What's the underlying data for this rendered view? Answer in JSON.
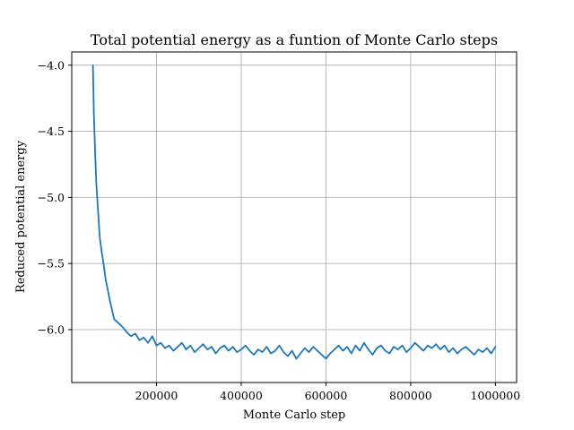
{
  "chart_data": {
    "type": "line",
    "title": "Total potential energy as a funtion of Monte Carlo steps",
    "xlabel": "Monte Carlo step",
    "ylabel": "Reduced potential energy",
    "xlim": [
      0,
      1050000
    ],
    "ylim": [
      -6.4,
      -3.9
    ],
    "xticks": [
      200000,
      400000,
      600000,
      800000,
      1000000
    ],
    "xtick_labels": [
      "200000",
      "400000",
      "600000",
      "800000",
      "1000000"
    ],
    "yticks": [
      -4.0,
      -4.5,
      -5.0,
      -5.5,
      -6.0
    ],
    "ytick_labels": [
      "−4.0",
      "−4.5",
      "−5.0",
      "−5.5",
      "−6.0"
    ],
    "grid": true,
    "series": [
      {
        "color": "#1f77b4",
        "x": [
          50000,
          52000,
          55000,
          58000,
          62000,
          66000,
          70000,
          75000,
          80000,
          85000,
          90000,
          95000,
          100000,
          110000,
          120000,
          130000,
          140000,
          150000,
          160000,
          170000,
          180000,
          190000,
          200000,
          210000,
          220000,
          230000,
          240000,
          250000,
          260000,
          270000,
          280000,
          290000,
          300000,
          310000,
          320000,
          330000,
          340000,
          350000,
          360000,
          370000,
          380000,
          390000,
          400000,
          410000,
          420000,
          430000,
          440000,
          450000,
          460000,
          470000,
          480000,
          490000,
          500000,
          510000,
          520000,
          530000,
          540000,
          550000,
          560000,
          570000,
          580000,
          590000,
          600000,
          610000,
          620000,
          630000,
          640000,
          650000,
          660000,
          670000,
          680000,
          690000,
          700000,
          710000,
          720000,
          730000,
          740000,
          750000,
          760000,
          770000,
          780000,
          790000,
          800000,
          810000,
          820000,
          830000,
          840000,
          850000,
          860000,
          870000,
          880000,
          890000,
          900000,
          910000,
          920000,
          930000,
          940000,
          950000,
          960000,
          970000,
          980000,
          990000,
          1000000
        ],
        "values": [
          -4.0,
          -4.35,
          -4.65,
          -4.9,
          -5.1,
          -5.3,
          -5.4,
          -5.5,
          -5.62,
          -5.7,
          -5.78,
          -5.85,
          -5.92,
          -5.95,
          -5.98,
          -6.02,
          -6.05,
          -6.03,
          -6.08,
          -6.06,
          -6.1,
          -6.05,
          -6.12,
          -6.1,
          -6.14,
          -6.12,
          -6.16,
          -6.13,
          -6.1,
          -6.15,
          -6.12,
          -6.17,
          -6.14,
          -6.11,
          -6.15,
          -6.13,
          -6.18,
          -6.14,
          -6.12,
          -6.16,
          -6.13,
          -6.17,
          -6.15,
          -6.12,
          -6.16,
          -6.19,
          -6.15,
          -6.17,
          -6.13,
          -6.18,
          -6.16,
          -6.12,
          -6.17,
          -6.2,
          -6.16,
          -6.22,
          -6.18,
          -6.14,
          -6.17,
          -6.13,
          -6.16,
          -6.19,
          -6.22,
          -6.18,
          -6.15,
          -6.12,
          -6.16,
          -6.13,
          -6.18,
          -6.12,
          -6.16,
          -6.1,
          -6.15,
          -6.19,
          -6.14,
          -6.12,
          -6.16,
          -6.18,
          -6.13,
          -6.15,
          -6.12,
          -6.17,
          -6.14,
          -6.1,
          -6.13,
          -6.16,
          -6.12,
          -6.14,
          -6.11,
          -6.15,
          -6.12,
          -6.17,
          -6.14,
          -6.18,
          -6.15,
          -6.13,
          -6.16,
          -6.19,
          -6.15,
          -6.17,
          -6.14,
          -6.18,
          -6.13
        ]
      }
    ]
  }
}
